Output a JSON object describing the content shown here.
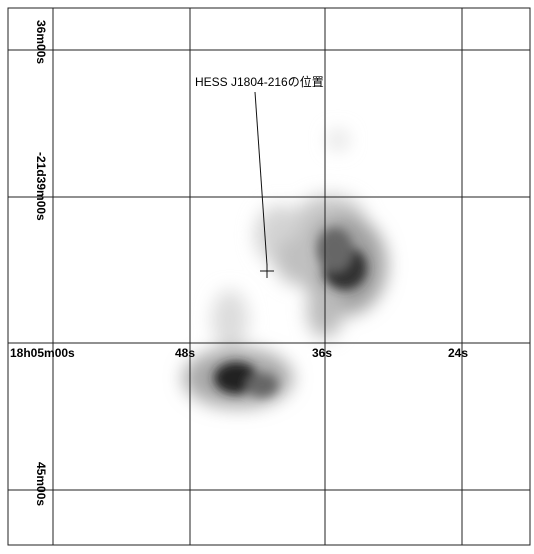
{
  "annotation": "HESS J1804-216の位置",
  "ra_labels": [
    "18h05m00s",
    "48s",
    "36s",
    "24s"
  ],
  "dec_labels": [
    "36m00s",
    "-21d39m00s",
    "45m00s"
  ]
}
